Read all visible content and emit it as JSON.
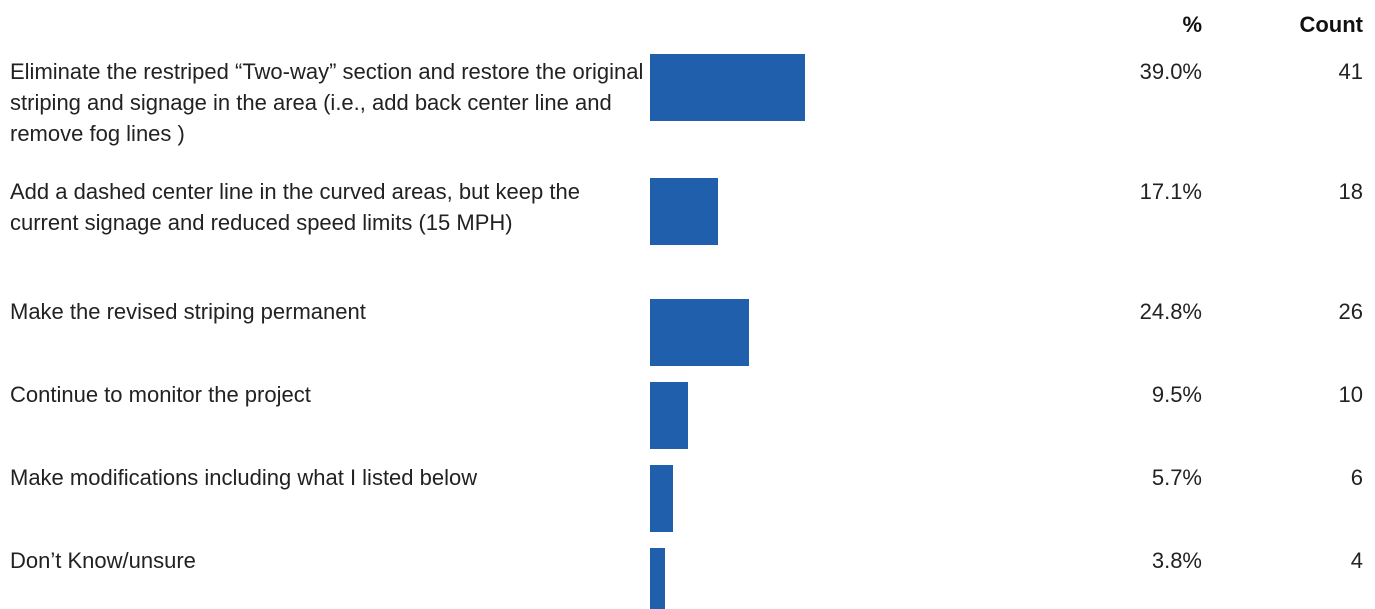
{
  "header": {
    "pct_label": "%",
    "count_label": "Count"
  },
  "chart_data": {
    "type": "bar",
    "orientation": "horizontal",
    "categories": [
      "Eliminate the restriped “Two-way” section and restore the original striping and signage in the area (i.e., add back center line and remove fog lines )",
      "Add a dashed center line in the curved areas, but keep the current signage and reduced speed limits (15 MPH)",
      "Make the revised striping permanent",
      "Continue to monitor the project",
      "Make modifications including what I listed below",
      "Don’t Know/unsure"
    ],
    "values": [
      39.0,
      17.1,
      24.8,
      9.5,
      5.7,
      3.8
    ],
    "percent_labels": [
      "39.0%",
      "17.1%",
      "24.8%",
      "9.5%",
      "5.7%",
      "3.8%"
    ],
    "counts": [
      "41",
      "18",
      "26",
      "10",
      "6",
      "4"
    ],
    "bar_color": "#1f5fab",
    "grid": false,
    "legend": "none"
  }
}
